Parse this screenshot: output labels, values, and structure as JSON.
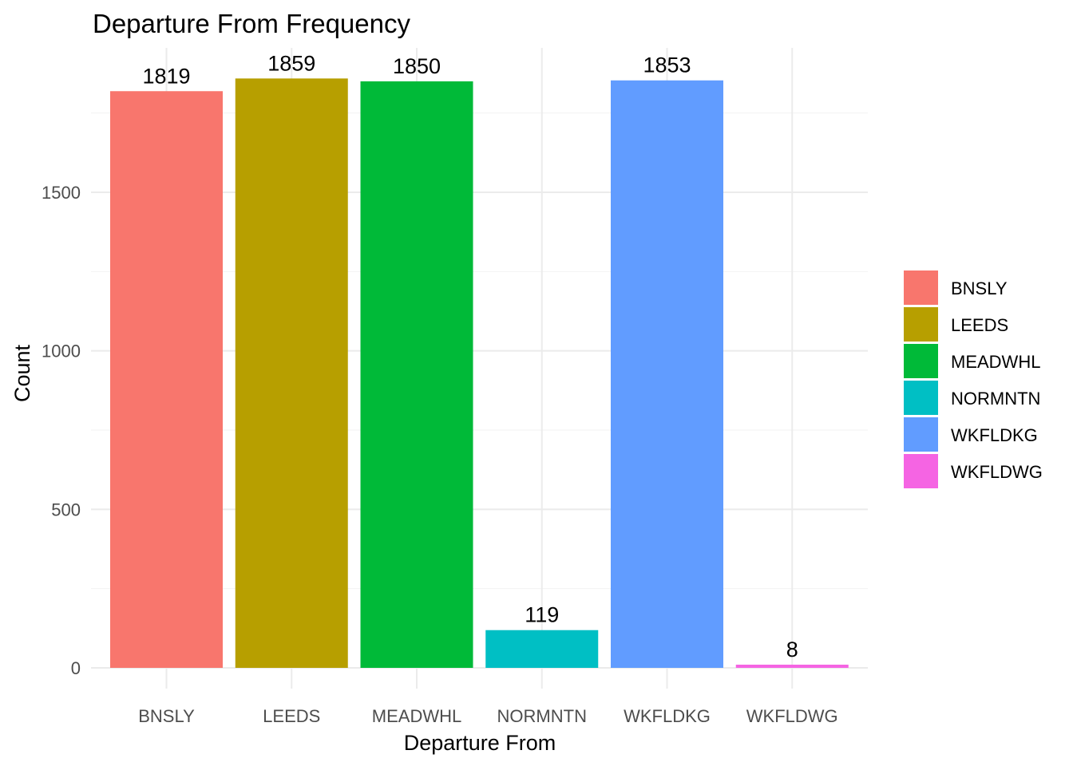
{
  "chart_data": {
    "type": "bar",
    "title": "Departure From Frequency",
    "xlabel": "Departure From",
    "ylabel": "Count",
    "categories": [
      "BNSLY",
      "LEEDS",
      "MEADWHL",
      "NORMNTN",
      "WKFLDKG",
      "WKFLDWG"
    ],
    "values": [
      1819,
      1859,
      1850,
      119,
      1853,
      8
    ],
    "colors": [
      "#F8766D",
      "#B79F00",
      "#00BA38",
      "#00BFC4",
      "#619CFF",
      "#F564E3"
    ],
    "ylim": [
      0,
      1950
    ],
    "yticks": [
      0,
      500,
      1000,
      1500
    ],
    "grid": true,
    "legend": {
      "position": "right",
      "entries": [
        "BNSLY",
        "LEEDS",
        "MEADWHL",
        "NORMNTN",
        "WKFLDKG",
        "WKFLDWG"
      ]
    }
  }
}
